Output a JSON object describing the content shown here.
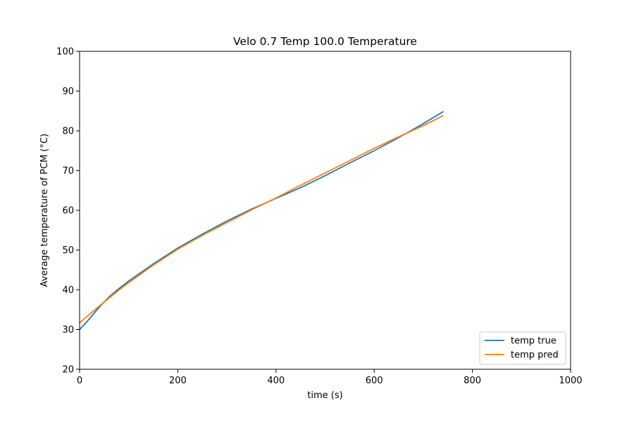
{
  "chart_data": {
    "type": "line",
    "title": "Velo 0.7 Temp 100.0 Temperature",
    "xlabel": "time (s)",
    "ylabel": "Average temperature of PCM (°C)",
    "xlim": [
      0,
      1000
    ],
    "ylim": [
      20,
      100
    ],
    "xticks": [
      0,
      200,
      400,
      600,
      800,
      1000
    ],
    "yticks": [
      20,
      30,
      40,
      50,
      60,
      70,
      80,
      90,
      100
    ],
    "grid": false,
    "legend_position": "lower-right",
    "series": [
      {
        "name": "temp true",
        "color": "#1f77b4",
        "x": [
          0,
          10,
          20,
          30,
          40,
          60,
          80,
          100,
          150,
          200,
          250,
          300,
          350,
          400,
          450,
          500,
          550,
          600,
          650,
          700,
          740
        ],
        "y": [
          30.0,
          31.3,
          32.7,
          34.2,
          35.6,
          38.2,
          40.3,
          42.2,
          46.5,
          50.5,
          54.0,
          57.3,
          60.3,
          63.0,
          65.7,
          68.7,
          71.9,
          75.0,
          78.3,
          81.8,
          84.8
        ]
      },
      {
        "name": "temp pred",
        "color": "#ff7f0e",
        "x": [
          0,
          20,
          40,
          60,
          80,
          100,
          150,
          200,
          250,
          300,
          350,
          400,
          450,
          500,
          550,
          600,
          650,
          700,
          740
        ],
        "y": [
          31.7,
          33.8,
          35.9,
          37.9,
          39.9,
          41.8,
          46.2,
          50.2,
          53.7,
          56.9,
          60.1,
          63.1,
          66.3,
          69.4,
          72.5,
          75.6,
          78.5,
          81.3,
          83.8
        ]
      }
    ]
  }
}
